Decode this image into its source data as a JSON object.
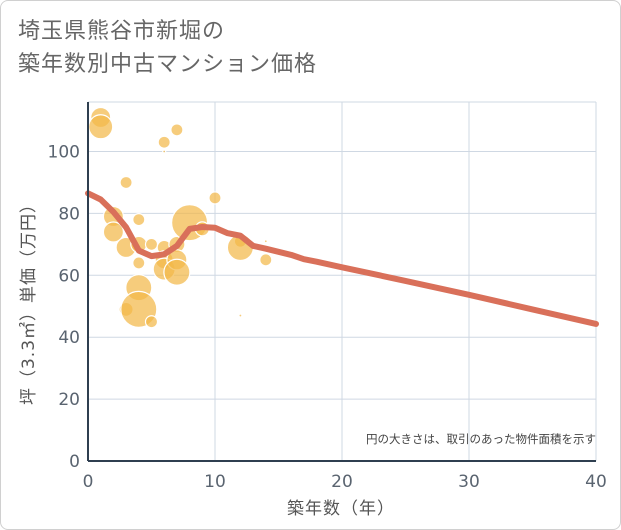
{
  "title_lines": [
    "埼玉県熊谷市新堀の",
    "築年数別中古マンション価格"
  ],
  "chart_data": {
    "type": "scatter",
    "xlabel": "築年数（年）",
    "ylabel": "坪（3.3㎡）単価（万円）",
    "xlim": [
      0,
      40
    ],
    "ylim": [
      0,
      116
    ],
    "xticks": [
      0,
      10,
      20,
      30,
      40
    ],
    "yticks": [
      0,
      20,
      40,
      60,
      80,
      100
    ],
    "grid": true,
    "annotation": "円の大きさは、取引のあった物件面積を示す",
    "colors": {
      "bubble": "#f2b94a",
      "trend": "#d9705a",
      "grid": "#cfd8e3",
      "axis": "#2f3f50"
    },
    "points": [
      {
        "x": 1,
        "y": 111,
        "r": 10
      },
      {
        "x": 1,
        "y": 108,
        "r": 12
      },
      {
        "x": 2,
        "y": 79,
        "r": 10
      },
      {
        "x": 2,
        "y": 74,
        "r": 10
      },
      {
        "x": 3,
        "y": 90,
        "r": 6
      },
      {
        "x": 3,
        "y": 69,
        "r": 10
      },
      {
        "x": 3,
        "y": 49,
        "r": 7
      },
      {
        "x": 4,
        "y": 78,
        "r": 6
      },
      {
        "x": 4,
        "y": 70,
        "r": 8
      },
      {
        "x": 4,
        "y": 64,
        "r": 6
      },
      {
        "x": 4,
        "y": 56,
        "r": 13
      },
      {
        "x": 4,
        "y": 49,
        "r": 18
      },
      {
        "x": 5,
        "y": 70,
        "r": 6
      },
      {
        "x": 5,
        "y": 45,
        "r": 6
      },
      {
        "x": 6,
        "y": 103,
        "r": 6
      },
      {
        "x": 6,
        "y": 100,
        "r": 1.5
      },
      {
        "x": 6,
        "y": 69,
        "r": 7
      },
      {
        "x": 6,
        "y": 65,
        "r": 9
      },
      {
        "x": 6,
        "y": 62,
        "r": 11
      },
      {
        "x": 7,
        "y": 107,
        "r": 6
      },
      {
        "x": 7,
        "y": 70,
        "r": 8
      },
      {
        "x": 7,
        "y": 65,
        "r": 10
      },
      {
        "x": 7,
        "y": 61,
        "r": 13
      },
      {
        "x": 8,
        "y": 77,
        "r": 18
      },
      {
        "x": 9,
        "y": 75,
        "r": 7
      },
      {
        "x": 10,
        "y": 85,
        "r": 6
      },
      {
        "x": 12,
        "y": 71,
        "r": 6
      },
      {
        "x": 12,
        "y": 69,
        "r": 13
      },
      {
        "x": 12,
        "y": 47,
        "r": 1.5
      },
      {
        "x": 14,
        "y": 71,
        "r": 1.5
      },
      {
        "x": 14,
        "y": 65,
        "r": 6
      }
    ],
    "trend": [
      [
        0,
        86.5
      ],
      [
        1,
        84.5
      ],
      [
        2,
        80.5
      ],
      [
        3,
        75.5
      ],
      [
        4,
        68
      ],
      [
        5,
        66.2
      ],
      [
        6,
        66.8
      ],
      [
        7,
        69.5
      ],
      [
        8,
        75
      ],
      [
        9,
        75.6
      ],
      [
        10,
        75.4
      ],
      [
        11,
        73.6
      ],
      [
        12,
        72.8
      ],
      [
        13,
        69.5
      ],
      [
        14,
        68.6
      ],
      [
        15,
        67.6
      ],
      [
        16,
        66.6
      ],
      [
        17,
        65.2
      ],
      [
        18,
        64.4
      ],
      [
        20,
        62.6
      ],
      [
        25,
        58.2
      ],
      [
        30,
        53.7
      ],
      [
        35,
        49.0
      ],
      [
        40,
        44.3
      ]
    ]
  }
}
